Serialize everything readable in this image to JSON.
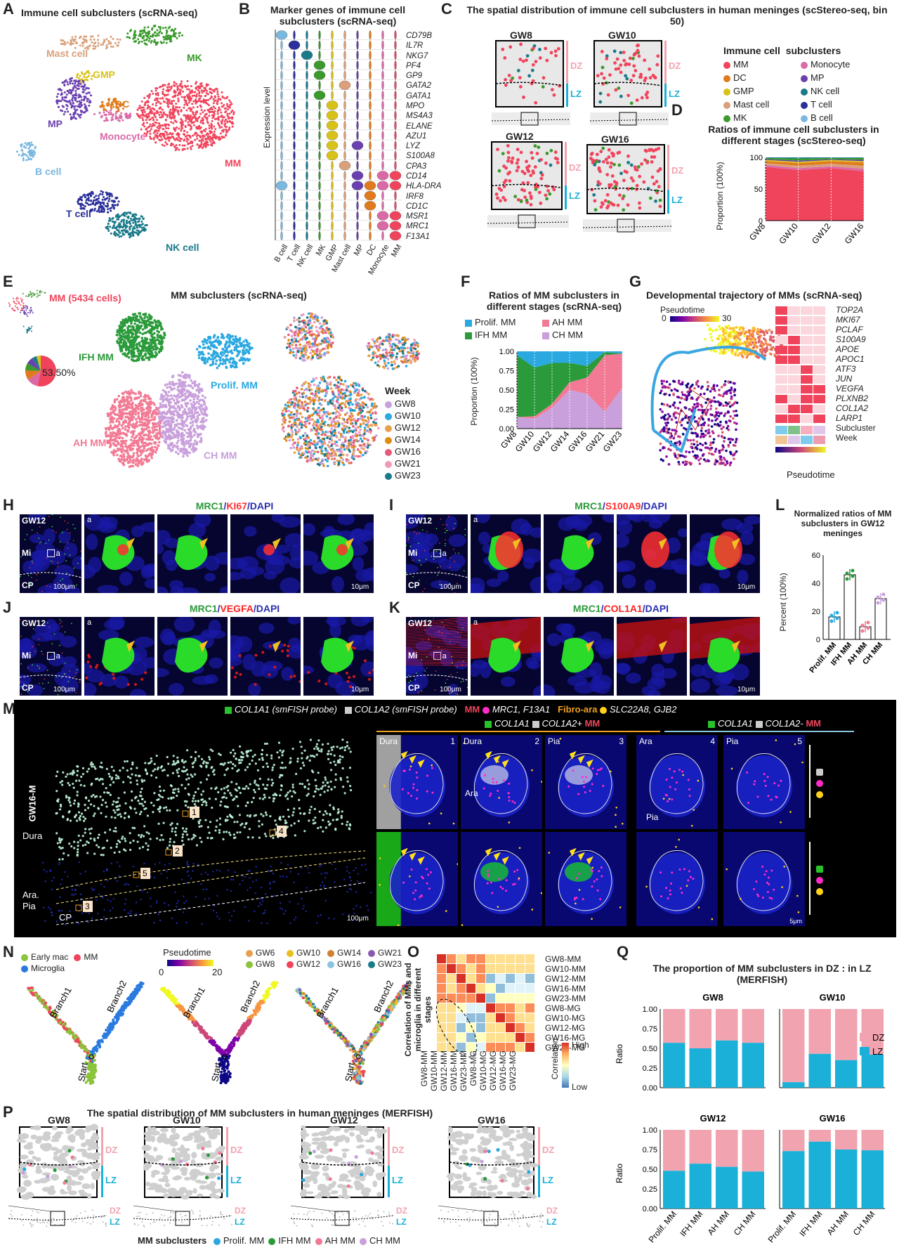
{
  "panels": {
    "A": {
      "letter": "A",
      "title": "Immune cell subclusters (scRNA-seq)",
      "clusters": [
        {
          "label": "Mast cell",
          "color": "#d9a07a"
        },
        {
          "label": "MK",
          "color": "#3a9a2c"
        },
        {
          "label": "GMP",
          "color": "#d8c21a"
        },
        {
          "label": "DC",
          "color": "#e07a1c"
        },
        {
          "label": "MP",
          "color": "#6a3fb0"
        },
        {
          "label": "Monocyte",
          "color": "#d96aa6"
        },
        {
          "label": "MM",
          "color": "#f0445c"
        },
        {
          "label": "B cell",
          "color": "#7ab8e0"
        },
        {
          "label": "T cell",
          "color": "#2a2f9a"
        },
        {
          "label": "NK cell",
          "color": "#1a7a8a"
        }
      ]
    },
    "B": {
      "letter": "B",
      "title": "Marker genes of immune cell subclusters (scRNA-seq)",
      "ylabel": "Expression level",
      "genes": [
        "CD79B",
        "IL7R",
        "NKG7",
        "PF4",
        "GP9",
        "GATA2",
        "GATA1",
        "MPO",
        "MS4A3",
        "ELANE",
        "AZU1",
        "LYZ",
        "S100A8",
        "CPA3",
        "CD14",
        "HLA-DRA",
        "IRF8",
        "CD1C",
        "MSR1",
        "MRC1",
        "F13A1"
      ],
      "cells": [
        "B cell",
        "T cell",
        "NK cell",
        "MK",
        "GMP",
        "Mast cell",
        "MP",
        "DC",
        "Monocyte",
        "MM"
      ]
    },
    "C": {
      "letter": "C",
      "title": "The spatial distribution of immune cell subclusters in human meninges (scStereo-seq, bin 50)",
      "stages": [
        "GW8",
        "GW10",
        "GW12",
        "GW16"
      ],
      "dz": "DZ",
      "lz": "LZ",
      "legend_title1": "Immune cell",
      "legend_title2": "subclusters",
      "legend": [
        {
          "label": "MM",
          "color": "#f0445c"
        },
        {
          "label": "Monocyte",
          "color": "#d96aa6"
        },
        {
          "label": "DC",
          "color": "#e07a1c"
        },
        {
          "label": "MP",
          "color": "#6a3fb0"
        },
        {
          "label": "GMP",
          "color": "#d8c21a"
        },
        {
          "label": "NK cell",
          "color": "#1a7a8a"
        },
        {
          "label": "Mast cell",
          "color": "#d9a07a"
        },
        {
          "label": "T cell",
          "color": "#2a2f9a"
        },
        {
          "label": "MK",
          "color": "#3a9a2c"
        },
        {
          "label": "B cell",
          "color": "#7ab8e0"
        }
      ]
    },
    "D": {
      "letter": "D",
      "title": "Ratios of immune cell subclusters in different stages (scStereo-seq)",
      "ylabel": "Proportion (100%)"
    },
    "E": {
      "letter": "E",
      "title": "MM subclusters (scRNA-seq)",
      "mm_count": "MM (5434 cells)",
      "pie_pct": "53.50%",
      "labels": [
        "IFH MM",
        "Prolif. MM",
        "AH MM",
        "CH MM"
      ],
      "legend_title": "Week",
      "weeks": [
        {
          "label": "GW8",
          "color": "#c9a0dc"
        },
        {
          "label": "GW10",
          "color": "#2aa8e0"
        },
        {
          "label": "GW12",
          "color": "#e8a050"
        },
        {
          "label": "GW14",
          "color": "#e08a10"
        },
        {
          "label": "GW16",
          "color": "#e45a7a"
        },
        {
          "label": "GW21",
          "color": "#f09ab8"
        },
        {
          "label": "GW23",
          "color": "#1a7a8a"
        }
      ]
    },
    "F": {
      "letter": "F",
      "title": "Ratios of MM subclusters in different stages (scRNA-seq)",
      "ylabel": "Proportion (100%)",
      "legend": [
        {
          "label": "Prolif. MM",
          "color": "#2aa8e0"
        },
        {
          "label": "AH MM",
          "color": "#f27a94"
        },
        {
          "label": "IFH MM",
          "color": "#2a9a3a"
        },
        {
          "label": "CH MM",
          "color": "#c9a0dc"
        }
      ]
    },
    "G": {
      "letter": "G",
      "title": "Developmental trajectory of MMs (scRNA-seq)",
      "pt_label": "Pseudotime",
      "pt_min": "0",
      "pt_max": "30",
      "genes": [
        "TOP2A",
        "MKI67",
        "PCLAF",
        "S100A9",
        "APOE",
        "APOC1",
        "ATF3",
        "JUN",
        "VEGFA",
        "PLXNB2",
        "COL1A2",
        "LARP1"
      ],
      "extra": [
        "Subcluster",
        "Week"
      ],
      "axis": "Pseudotime"
    },
    "H": {
      "letter": "H",
      "stain": [
        "MRC1",
        "/",
        "KI67",
        "/DAPI"
      ]
    },
    "I": {
      "letter": "I",
      "stain": [
        "MRC1",
        "/",
        "S100A9",
        "/DAPI"
      ]
    },
    "J": {
      "letter": "J",
      "stain": [
        "MRC1",
        "/",
        "VEGFA",
        "/DAPI"
      ]
    },
    "K": {
      "letter": "K",
      "stain": [
        "MRC1",
        "/",
        "COL1A1",
        "/DAPI"
      ]
    },
    "micro_common": {
      "gw": "GW12",
      "mi": "Mi",
      "cp": "CP",
      "a": "a",
      "sb100": "100μm",
      "sb10": "10μm"
    },
    "L": {
      "letter": "L",
      "title": "Normalized ratios of MM subclusters in GW12 meninges",
      "ylabel": "Percent (100%)",
      "categories": [
        "Prolif. MM",
        "IFH MM",
        "AH MM",
        "CH MM"
      ]
    },
    "M": {
      "letter": "M",
      "legend_col1a1": "COL1A1 (smFISH probe)",
      "legend_col1a2": "COL1A2 (smFISH probe)",
      "legend_mm": "MM",
      "legend_mm_genes": "MRC1, F13A1",
      "legend_fibro": "Fibro-ara",
      "legend_fibro_genes": "SLC22A8, GJB2",
      "side": "GW16-M",
      "layers": [
        "Dura",
        "Ara.",
        "Pia",
        "CP"
      ],
      "sb": "100μm",
      "sb5": "5μm",
      "group1": "COL1A1",
      "group1b": "COL1A2+",
      "group1c": "MM",
      "group2": "COL1A1",
      "group2b": "COL1A2-",
      "group2c": "MM",
      "boxes": [
        {
          "n": "1",
          "label": "Dura"
        },
        {
          "n": "2",
          "label": "Dura"
        },
        {
          "n": "3",
          "label": "Pia"
        },
        {
          "n": "4",
          "label": "Ara"
        },
        {
          "n": "5",
          "label": "Pia"
        }
      ],
      "ara": "Ara",
      "pia": "Pia"
    },
    "N": {
      "letter": "N",
      "legend1": [
        {
          "label": "Early mac",
          "color": "#8ac43a"
        },
        {
          "label": "MM",
          "color": "#f0445c"
        },
        {
          "label": "Microglia",
          "color": "#2a7ae0"
        }
      ],
      "pt_label": "Pseudotime",
      "pt_min": "0",
      "pt_max": "20",
      "weeks": [
        {
          "label": "GW6",
          "color": "#e8a050"
        },
        {
          "label": "GW10",
          "color": "#e8c020"
        },
        {
          "label": "GW14",
          "color": "#d08030"
        },
        {
          "label": "GW21",
          "color": "#8a5ab0"
        },
        {
          "label": "GW8",
          "color": "#8ac43a"
        },
        {
          "label": "GW12",
          "color": "#f0445c"
        },
        {
          "label": "GW16",
          "color": "#8ac4e0"
        },
        {
          "label": "GW23",
          "color": "#1a7a8a"
        }
      ],
      "branch1": "Branch1",
      "branch2": "Branch2",
      "start": "Start"
    },
    "O": {
      "letter": "O",
      "ylabel": "Correlation of MMs and microglia in different stages",
      "labels": [
        "GW8-MM",
        "GW10-MM",
        "GW12-MM",
        "GW16-MM",
        "GW23-MM",
        "GW8-MG",
        "GW10-MG",
        "GW12-MG",
        "GW16-MG",
        "GW23-MG"
      ],
      "legend_title": "Correlation",
      "high": "High",
      "low": "Low"
    },
    "P": {
      "letter": "P",
      "title": "The spatial distribution of MM subclusters in human meninges (MERFISH)",
      "stages": [
        "GW8",
        "GW10",
        "GW12",
        "GW16"
      ],
      "dz": "DZ",
      "lz": "LZ",
      "legend_title": "MM subclusters",
      "legend": [
        {
          "label": "Prolif. MM",
          "color": "#2aa8e0"
        },
        {
          "label": "IFH MM",
          "color": "#2a9a3a"
        },
        {
          "label": "AH MM",
          "color": "#f27a94"
        },
        {
          "label": "CH MM",
          "color": "#c9a0dc"
        }
      ]
    },
    "Q": {
      "letter": "Q",
      "title": "The proportion of MM subclusters in DZ : in LZ (MERFISH)",
      "ylabel": "Ratio",
      "legend": [
        {
          "label": "DZ",
          "color": "#f2a3b0"
        },
        {
          "label": "LZ",
          "color": "#1ab0d8"
        }
      ]
    }
  },
  "chart_data": [
    {
      "panel": "D",
      "type": "area",
      "x": [
        "GW8",
        "GW10",
        "GW12",
        "GW16"
      ],
      "ylim": [
        0,
        1
      ],
      "series": [
        {
          "name": "MM",
          "color": "#f0445c",
          "values": [
            0.85,
            0.8,
            0.83,
            0.78
          ]
        },
        {
          "name": "Monocyte",
          "color": "#d96aa6",
          "values": [
            0.03,
            0.03,
            0.03,
            0.04
          ]
        },
        {
          "name": "Mast cell",
          "color": "#d9a07a",
          "values": [
            0.03,
            0.04,
            0.04,
            0.05
          ]
        },
        {
          "name": "DC",
          "color": "#e07a1c",
          "values": [
            0.03,
            0.04,
            0.04,
            0.05
          ]
        },
        {
          "name": "GMP",
          "color": "#d8c21a",
          "values": [
            0.02,
            0.02,
            0.02,
            0.02
          ]
        },
        {
          "name": "MP",
          "color": "#6a3fb0",
          "values": [
            0.01,
            0.02,
            0.01,
            0.02
          ]
        },
        {
          "name": "MK",
          "color": "#3a9a2c",
          "values": [
            0.02,
            0.03,
            0.02,
            0.03
          ]
        },
        {
          "name": "NK cell",
          "color": "#1a7a8a",
          "values": [
            0.01,
            0.02,
            0.01,
            0.01
          ]
        }
      ]
    },
    {
      "panel": "F",
      "type": "area",
      "x": [
        "GW8",
        "GW10",
        "GW12",
        "GW14",
        "GW16",
        "GW21",
        "GW23"
      ],
      "ylim": [
        0,
        1
      ],
      "yticks": [
        "0.00",
        "0.25",
        "0.50",
        "0.75",
        "1.00"
      ],
      "series": [
        {
          "name": "CH MM",
          "color": "#c9a0dc",
          "values": [
            0.15,
            0.13,
            0.27,
            0.5,
            0.45,
            0.22,
            0.53
          ]
        },
        {
          "name": "AH MM",
          "color": "#f27a94",
          "values": [
            0.0,
            0.03,
            0.05,
            0.1,
            0.21,
            0.73,
            0.44
          ]
        },
        {
          "name": "IFH MM",
          "color": "#2a9a3a",
          "values": [
            0.8,
            0.63,
            0.53,
            0.25,
            0.15,
            0.04,
            0.0
          ]
        },
        {
          "name": "Prolif. MM",
          "color": "#2aa8e0",
          "values": [
            0.05,
            0.21,
            0.15,
            0.15,
            0.19,
            0.01,
            0.03
          ]
        }
      ]
    },
    {
      "panel": "L",
      "type": "bar",
      "categories": [
        "Prolif. MM",
        "IFH MM",
        "AH MM",
        "CH MM"
      ],
      "values": [
        16,
        46,
        9,
        29
      ],
      "ylim": [
        0,
        60
      ],
      "yticks": [
        "0",
        "20",
        "40",
        "60"
      ],
      "colors": [
        "#2aa8e0",
        "#2a9a3a",
        "#f27a94",
        "#c9a0dc"
      ]
    },
    {
      "panel": "Q",
      "type": "bar",
      "stacked": true,
      "categories": [
        "Prolif. MM",
        "IFH MM",
        "AH MM",
        "CH MM"
      ],
      "ylim": [
        0,
        1
      ],
      "yticks": [
        "0.00",
        "0.25",
        "0.50",
        "0.75",
        "1.00"
      ],
      "groups": [
        {
          "stage": "GW8",
          "LZ": [
            0.57,
            0.5,
            0.6,
            0.57
          ]
        },
        {
          "stage": "GW10",
          "LZ": [
            0.07,
            0.43,
            0.35,
            0.42
          ]
        },
        {
          "stage": "GW12",
          "LZ": [
            0.48,
            0.57,
            0.53,
            0.47
          ]
        },
        {
          "stage": "GW16",
          "LZ": [
            0.73,
            0.85,
            0.75,
            0.74
          ]
        }
      ]
    }
  ]
}
